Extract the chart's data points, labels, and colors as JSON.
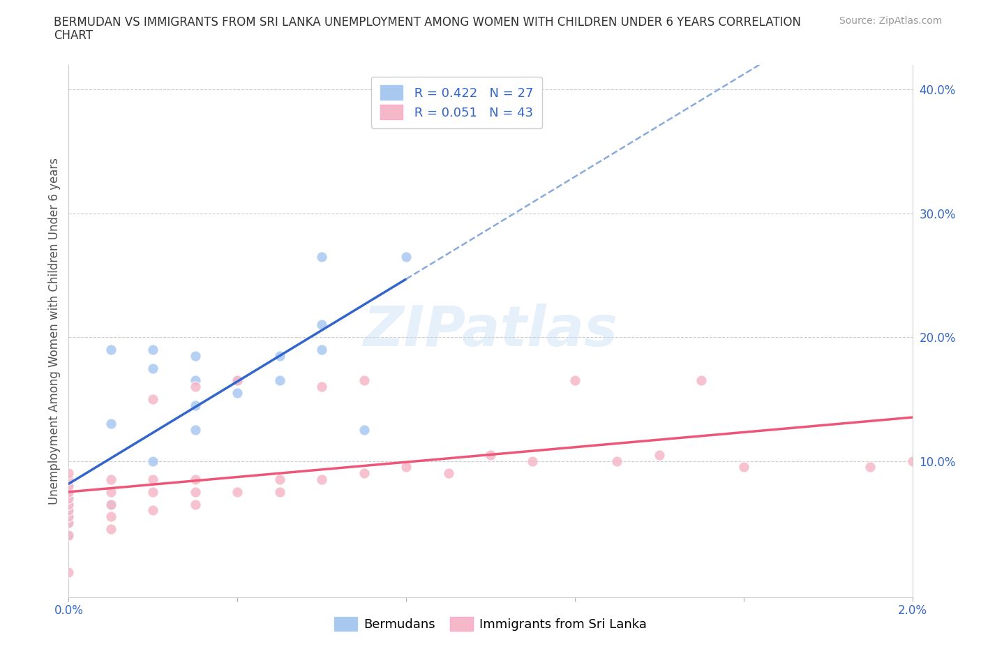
{
  "title_line1": "BERMUDAN VS IMMIGRANTS FROM SRI LANKA UNEMPLOYMENT AMONG WOMEN WITH CHILDREN UNDER 6 YEARS CORRELATION",
  "title_line2": "CHART",
  "source": "Source: ZipAtlas.com",
  "ylabel": "Unemployment Among Women with Children Under 6 years",
  "xlim": [
    0.0,
    0.02
  ],
  "ylim": [
    -0.01,
    0.42
  ],
  "xticks": [
    0.0,
    0.004,
    0.008,
    0.012,
    0.016,
    0.02
  ],
  "xtick_labels": [
    "0.0%",
    "",
    "",
    "",
    "",
    "2.0%"
  ],
  "yticks_right": [
    0.0,
    0.1,
    0.2,
    0.3,
    0.4
  ],
  "ytick_right_labels": [
    "",
    "10.0%",
    "20.0%",
    "30.0%",
    "40.0%"
  ],
  "color_blue": "#a8c8f0",
  "color_pink": "#f5b8c8",
  "line_blue": "#3366cc",
  "line_pink": "#ee5577",
  "line_dash": "#88aadd",
  "watermark": "ZIPatlas",
  "grid_color": "#cccccc",
  "background_color": "#ffffff",
  "berm_x": [
    0.0,
    0.0,
    0.0,
    0.0,
    0.0,
    0.0,
    0.0,
    0.0,
    0.001,
    0.001,
    0.001,
    0.002,
    0.002,
    0.002,
    0.003,
    0.003,
    0.003,
    0.004,
    0.004,
    0.005,
    0.005,
    0.006,
    0.006,
    0.007,
    0.008,
    0.003,
    0.006
  ],
  "berm_y": [
    0.04,
    0.05,
    0.055,
    0.06,
    0.065,
    0.07,
    0.075,
    0.08,
    0.065,
    0.13,
    0.19,
    0.1,
    0.175,
    0.19,
    0.125,
    0.145,
    0.165,
    0.155,
    0.165,
    0.165,
    0.185,
    0.19,
    0.21,
    0.125,
    0.265,
    0.185,
    0.265
  ],
  "sl_x": [
    0.0,
    0.0,
    0.0,
    0.0,
    0.0,
    0.0,
    0.0,
    0.0,
    0.0,
    0.0,
    0.0,
    0.001,
    0.001,
    0.001,
    0.001,
    0.001,
    0.002,
    0.002,
    0.002,
    0.002,
    0.003,
    0.003,
    0.003,
    0.003,
    0.004,
    0.004,
    0.005,
    0.005,
    0.006,
    0.006,
    0.007,
    0.007,
    0.008,
    0.009,
    0.01,
    0.011,
    0.012,
    0.013,
    0.014,
    0.015,
    0.016,
    0.019,
    0.02
  ],
  "sl_y": [
    0.04,
    0.05,
    0.055,
    0.06,
    0.065,
    0.07,
    0.075,
    0.08,
    0.085,
    0.09,
    0.01,
    0.045,
    0.055,
    0.065,
    0.075,
    0.085,
    0.06,
    0.075,
    0.085,
    0.15,
    0.065,
    0.075,
    0.085,
    0.16,
    0.075,
    0.165,
    0.075,
    0.085,
    0.085,
    0.16,
    0.09,
    0.165,
    0.095,
    0.09,
    0.105,
    0.1,
    0.165,
    0.1,
    0.105,
    0.165,
    0.095,
    0.095,
    0.1
  ],
  "title_fontsize": 12,
  "tick_fontsize": 12,
  "ylabel_fontsize": 12,
  "source_fontsize": 10,
  "legend_fontsize": 13
}
